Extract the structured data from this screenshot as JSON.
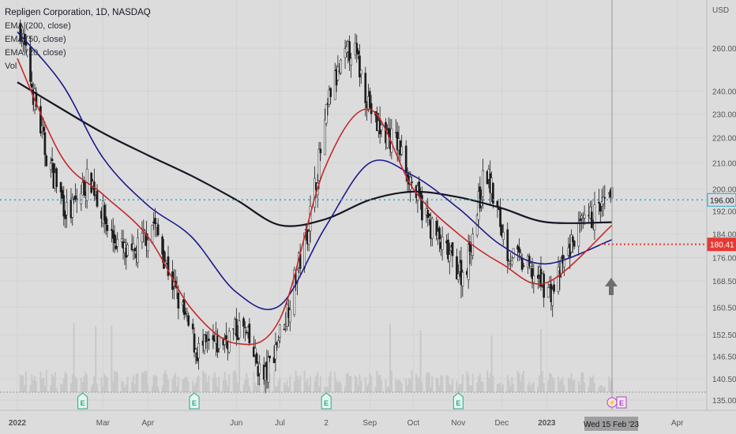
{
  "header": {
    "title": "Repligen Corporation, 1D, NASDAQ"
  },
  "legend": {
    "items": [
      {
        "label": "EMA (200, close)",
        "color": "#131722"
      },
      {
        "label": "EMA (50, close)",
        "color": "#1a1a8c"
      },
      {
        "label": "EMA (20, close)",
        "color": "#c62828"
      },
      {
        "label": "Vol",
        "color": "#9e9e9e"
      }
    ]
  },
  "price_axis": {
    "currency": "USD"
  },
  "cursor": {
    "date_label": "Wed 15 Feb '23"
  },
  "price_badges": [
    {
      "value": "196.00",
      "color": "#26a9c9"
    },
    {
      "value": "180.41",
      "color": "#e53935"
    }
  ],
  "chart_data": {
    "type": "line",
    "title": "Repligen Corporation, 1D, NASDAQ",
    "y_scale": "log",
    "ylim": [
      132,
      278
    ],
    "y_ticks": [
      135.0,
      140.5,
      146.5,
      152.5,
      160.5,
      168.5,
      176.0,
      184.0,
      192.0,
      200.0,
      210.0,
      220.0,
      230.0,
      240.0,
      260.0
    ],
    "x_ticks": [
      "2022",
      "Mar",
      "Apr",
      "Jun",
      "Jul",
      "2",
      "Sep",
      "Oct",
      "Nov",
      "Dec",
      "2023",
      "Apr"
    ],
    "grid": true,
    "legend_position": "top-left",
    "horizontal_lines": [
      {
        "value": 196.0,
        "style": "dotted",
        "color": "#26a9c9"
      },
      {
        "value": 180.41,
        "style": "dotted",
        "color": "#e53935"
      }
    ],
    "series": [
      {
        "name": "EMA (200, close)",
        "color": "#131722",
        "x": [
          "2022-01-01",
          "2022-02-01",
          "2022-03-01",
          "2022-04-01",
          "2022-05-01",
          "2022-06-01",
          "2022-07-01",
          "2022-08-01",
          "2022-09-01",
          "2022-10-01",
          "2022-11-01",
          "2022-12-01",
          "2023-01-01",
          "2023-02-15"
        ],
        "values": [
          244,
          232,
          222,
          213,
          205,
          196,
          187,
          189,
          196,
          199,
          197,
          193,
          188,
          188
        ]
      },
      {
        "name": "EMA (50, close)",
        "color": "#1a1a8c",
        "x": [
          "2022-01-01",
          "2022-02-01",
          "2022-03-01",
          "2022-04-01",
          "2022-05-01",
          "2022-06-01",
          "2022-07-01",
          "2022-08-01",
          "2022-09-01",
          "2022-10-01",
          "2022-11-01",
          "2022-12-01",
          "2023-01-01",
          "2023-02-15"
        ],
        "values": [
          268,
          243,
          212,
          194,
          183,
          165,
          161,
          186,
          210,
          205,
          193,
          180,
          174,
          182
        ]
      },
      {
        "name": "EMA (20, close)",
        "color": "#c62828",
        "x": [
          "2022-01-01",
          "2022-02-01",
          "2022-03-01",
          "2022-04-01",
          "2022-05-01",
          "2022-06-01",
          "2022-07-01",
          "2022-08-01",
          "2022-09-01",
          "2022-10-01",
          "2022-11-01",
          "2022-12-01",
          "2023-01-01",
          "2023-02-15"
        ],
        "values": [
          255,
          212,
          198,
          183,
          160,
          150,
          157,
          208,
          232,
          200,
          184,
          174,
          168,
          187
        ]
      },
      {
        "name": "Price (close)",
        "color": "#131722",
        "x": [
          "2022-01-03",
          "2022-01-20",
          "2022-02-05",
          "2022-02-20",
          "2022-03-05",
          "2022-03-20",
          "2022-04-05",
          "2022-04-20",
          "2022-05-05",
          "2022-05-20",
          "2022-06-05",
          "2022-06-20",
          "2022-07-05",
          "2022-07-20",
          "2022-08-05",
          "2022-08-20",
          "2022-09-05",
          "2022-09-20",
          "2022-10-05",
          "2022-10-20",
          "2022-11-05",
          "2022-11-20",
          "2022-12-05",
          "2022-12-20",
          "2023-01-05",
          "2023-01-20",
          "2023-02-05",
          "2023-02-15"
        ],
        "values": [
          270,
          215,
          190,
          205,
          185,
          175,
          188,
          165,
          148,
          150,
          155,
          140,
          158,
          185,
          240,
          262,
          225,
          218,
          195,
          180,
          170,
          208,
          178,
          172,
          165,
          183,
          192,
          196
        ]
      }
    ]
  }
}
